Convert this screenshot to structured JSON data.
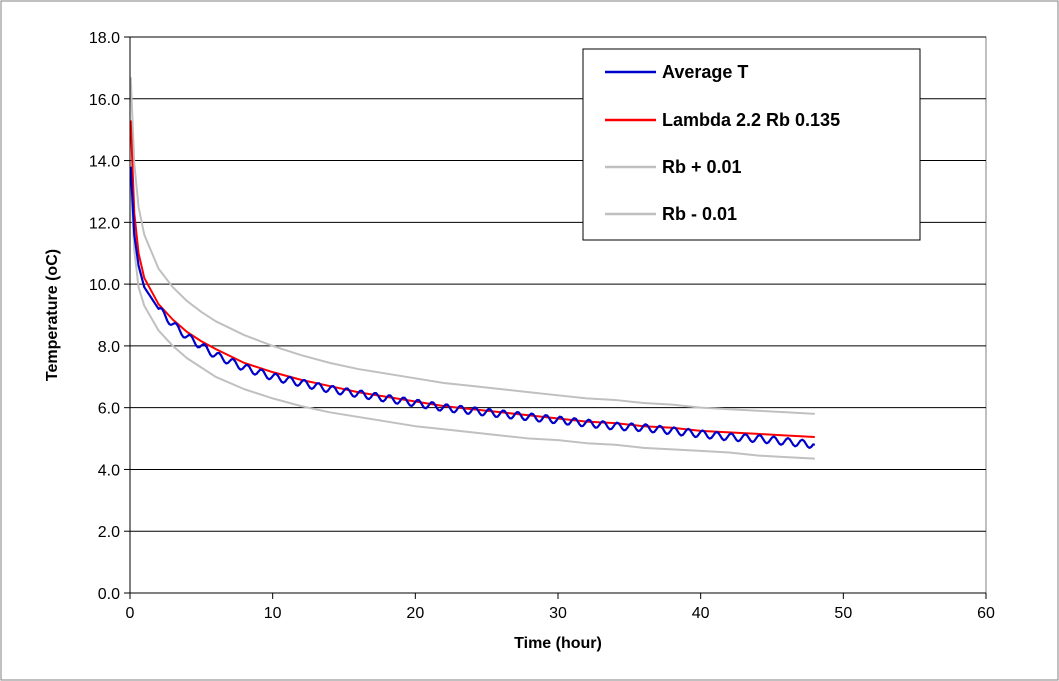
{
  "chart_data": {
    "type": "line",
    "title": "",
    "xlabel": "Time (hour)",
    "ylabel": "Temperature (oC)",
    "xlim": [
      0,
      60
    ],
    "ylim": [
      0,
      18
    ],
    "x_ticks": [
      0,
      10,
      20,
      30,
      40,
      50,
      60
    ],
    "x_tick_labels": [
      "0",
      "10",
      "20",
      "30",
      "40",
      "50",
      "60"
    ],
    "y_ticks": [
      0,
      2,
      4,
      6,
      8,
      10,
      12,
      14,
      16,
      18
    ],
    "y_tick_labels": [
      "0.0",
      "2.0",
      "4.0",
      "6.0",
      "8.0",
      "10.0",
      "12.0",
      "14.0",
      "16.0",
      "18.0"
    ],
    "grid": "horizontal",
    "legend_position": "top-right",
    "series": [
      {
        "name": "Average T",
        "color": "#0000CC",
        "x": [
          0.05,
          0.3,
          0.6,
          1,
          2,
          3,
          4,
          5,
          6,
          8,
          10,
          12,
          14,
          16,
          18,
          20,
          22,
          24,
          26,
          28,
          30,
          32,
          34,
          36,
          38,
          40,
          42,
          44,
          46,
          48
        ],
        "y": [
          13.8,
          11.6,
          10.6,
          9.9,
          9.2,
          8.7,
          8.3,
          8.0,
          7.7,
          7.3,
          7.0,
          6.8,
          6.6,
          6.45,
          6.3,
          6.15,
          6.0,
          5.9,
          5.8,
          5.7,
          5.6,
          5.5,
          5.4,
          5.35,
          5.25,
          5.15,
          5.05,
          5.0,
          4.9,
          4.8
        ]
      },
      {
        "name": "Lambda 2.2 Rb 0.135",
        "color": "#FF0000",
        "x": [
          0.05,
          0.3,
          0.6,
          1,
          2,
          3,
          4,
          5,
          6,
          8,
          10,
          12,
          14,
          16,
          18,
          20,
          22,
          24,
          26,
          28,
          30,
          32,
          34,
          36,
          38,
          40,
          42,
          44,
          46,
          48
        ],
        "y": [
          15.3,
          12.3,
          11.0,
          10.2,
          9.35,
          8.85,
          8.45,
          8.15,
          7.9,
          7.45,
          7.15,
          6.9,
          6.7,
          6.5,
          6.35,
          6.2,
          6.05,
          5.95,
          5.85,
          5.75,
          5.65,
          5.55,
          5.5,
          5.4,
          5.35,
          5.25,
          5.2,
          5.15,
          5.1,
          5.05
        ]
      },
      {
        "name": "Rb + 0.01",
        "color": "#C0C0C0",
        "x": [
          0.05,
          0.3,
          0.6,
          1,
          2,
          3,
          4,
          5,
          6,
          8,
          10,
          12,
          14,
          16,
          18,
          20,
          22,
          24,
          26,
          28,
          30,
          32,
          34,
          36,
          38,
          40,
          42,
          44,
          46,
          48
        ],
        "y": [
          16.7,
          13.9,
          12.5,
          11.6,
          10.5,
          9.9,
          9.45,
          9.1,
          8.8,
          8.35,
          8.0,
          7.7,
          7.45,
          7.25,
          7.1,
          6.95,
          6.8,
          6.7,
          6.6,
          6.5,
          6.4,
          6.3,
          6.25,
          6.15,
          6.1,
          6.0,
          5.95,
          5.9,
          5.85,
          5.8
        ]
      },
      {
        "name": "Rb - 0.01",
        "color": "#C0C0C0",
        "x": [
          0.05,
          0.3,
          0.6,
          1,
          2,
          3,
          4,
          5,
          6,
          8,
          10,
          12,
          14,
          16,
          18,
          20,
          22,
          24,
          26,
          28,
          30,
          32,
          34,
          36,
          38,
          40,
          42,
          44,
          46,
          48
        ],
        "y": [
          13.4,
          11.1,
          9.9,
          9.3,
          8.5,
          8.0,
          7.6,
          7.3,
          7.0,
          6.6,
          6.3,
          6.05,
          5.85,
          5.7,
          5.55,
          5.4,
          5.3,
          5.2,
          5.1,
          5.0,
          4.95,
          4.85,
          4.8,
          4.7,
          4.65,
          4.6,
          4.55,
          4.45,
          4.4,
          4.35
        ]
      }
    ]
  }
}
